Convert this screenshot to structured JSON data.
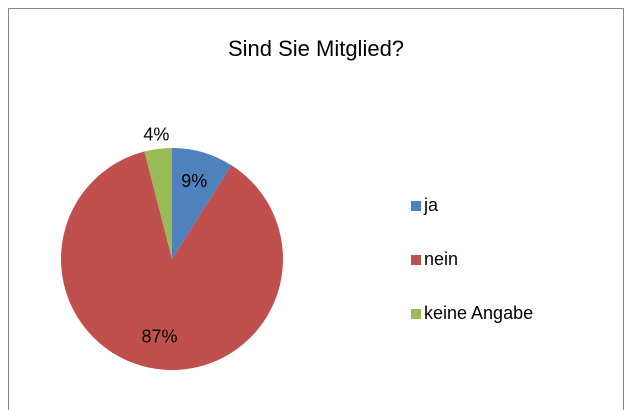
{
  "chart_data": {
    "type": "pie",
    "title": "Sind Sie Mitglied?",
    "categories": [
      "ja",
      "nein",
      "keine Angabe"
    ],
    "values": [
      9,
      87,
      4
    ],
    "value_labels": [
      "9%",
      "87%",
      "4%"
    ],
    "colors": [
      "#4f81bd",
      "#c0504d",
      "#9bbb59"
    ],
    "legend": "right"
  }
}
